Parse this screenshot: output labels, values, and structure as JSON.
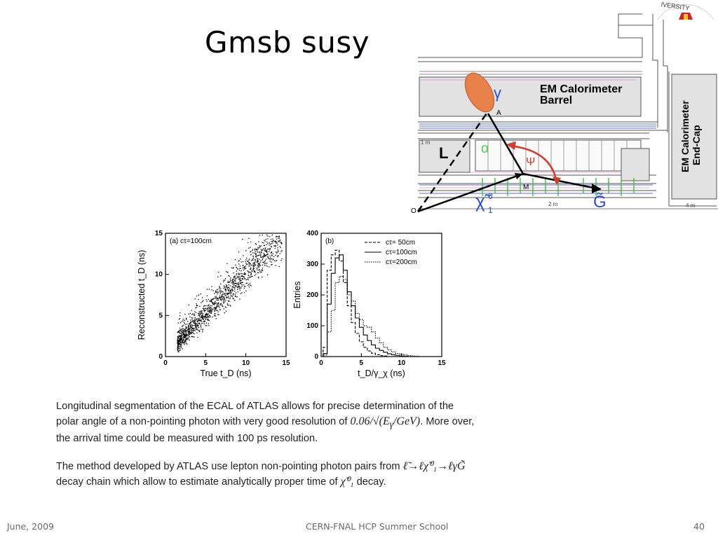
{
  "slide": {
    "title": "Gmsb susy",
    "footer_left": "June, 2009",
    "footer_center": "CERN-FNAL HCP Summer School",
    "page_number": "40"
  },
  "logo": {
    "text": "IVERSITY"
  },
  "diagram": {
    "em_barrel_line1": "EM Calorimeter",
    "em_barrel_line2": "Barrel",
    "em_endcap_line1": "EM Calorimeter",
    "em_endcap_line2": "End-Cap",
    "gamma": "γ",
    "point_a": "A",
    "point_m": "M",
    "point_o": "O",
    "label_l": "L",
    "alpha": "α",
    "psi": "Ψ",
    "chi": "χ̃",
    "chi_sup": "0",
    "chi_sub": "1",
    "gravitino": "G̃",
    "scale_1m": "1 m",
    "scale_2m": "2 m",
    "scale_4m": "4 m"
  },
  "chart_data": [
    {
      "type": "scatter",
      "panel_label": "(a) cτ=100cm",
      "xlabel": "True t_D (ns)",
      "ylabel": "Reconstructed t_D (ns)",
      "xlim": [
        0,
        15
      ],
      "ylim": [
        0,
        15
      ],
      "xticks": [
        0,
        5,
        10,
        15
      ],
      "yticks": [
        0,
        5,
        10,
        15
      ],
      "trend": {
        "slope": 1.0,
        "intercept": 0.0,
        "x_range": [
          1.5,
          14.5
        ]
      }
    },
    {
      "type": "line",
      "panel_label": "(b)",
      "xlabel": "t_D/γ_χ (ns)",
      "ylabel": "Entries",
      "xlim": [
        0,
        15
      ],
      "ylim": [
        0,
        400
      ],
      "xticks": [
        0,
        5,
        10,
        15
      ],
      "yticks": [
        0,
        100,
        200,
        300,
        400
      ],
      "x": [
        0.5,
        1.0,
        1.5,
        2.0,
        2.5,
        3.0,
        3.5,
        4.0,
        4.5,
        5.0,
        5.5,
        6.0,
        6.5,
        7.0,
        7.5,
        8.0,
        8.5,
        9.0,
        9.5,
        10.0,
        10.5,
        11.0,
        11.5,
        12.0
      ],
      "series": [
        {
          "name": "cτ= 50cm",
          "dash": "4,2",
          "values": [
            30,
            280,
            330,
            345,
            310,
            240,
            165,
            110,
            75,
            48,
            30,
            18,
            11,
            6,
            3,
            2,
            0,
            0,
            0,
            0,
            0,
            0,
            0,
            0
          ]
        },
        {
          "name": "cτ=100cm",
          "dash": "",
          "values": [
            10,
            170,
            270,
            320,
            330,
            280,
            210,
            165,
            125,
            95,
            70,
            52,
            38,
            27,
            20,
            14,
            9,
            6,
            4,
            2,
            1,
            0,
            0,
            0
          ]
        },
        {
          "name": "cτ=200cm",
          "dash": "1.5,1.5",
          "values": [
            5,
            80,
            150,
            240,
            260,
            250,
            200,
            180,
            140,
            120,
            100,
            95,
            80,
            60,
            45,
            30,
            22,
            15,
            10,
            7,
            5,
            3,
            2,
            1
          ]
        }
      ]
    }
  ],
  "text": {
    "p1_a": "Longitudinal segmentation of the ECAL of ATLAS allows for precise determination of the",
    "p1_b": "polar angle of a non-pointing photon with very good resolution of ",
    "p1_math": "0.06/√(E",
    "p1_math_sub": "γ",
    "p1_math_tail": "/GeV)",
    "p1_c": ". More over,",
    "p1_d": "the arrival time could be measured with 100 ps resolution.",
    "p2_a": "The method developed by ATLAS use lepton non-pointing photon pairs from ",
    "p2_math": "ℓ̃→ℓχ̃⁰₁→ℓγG̃",
    "p2_b": "decay chain which allow to estimate analytically proper time of ",
    "p2_math2": "χ̃⁰₁",
    "p2_c": " decay."
  }
}
